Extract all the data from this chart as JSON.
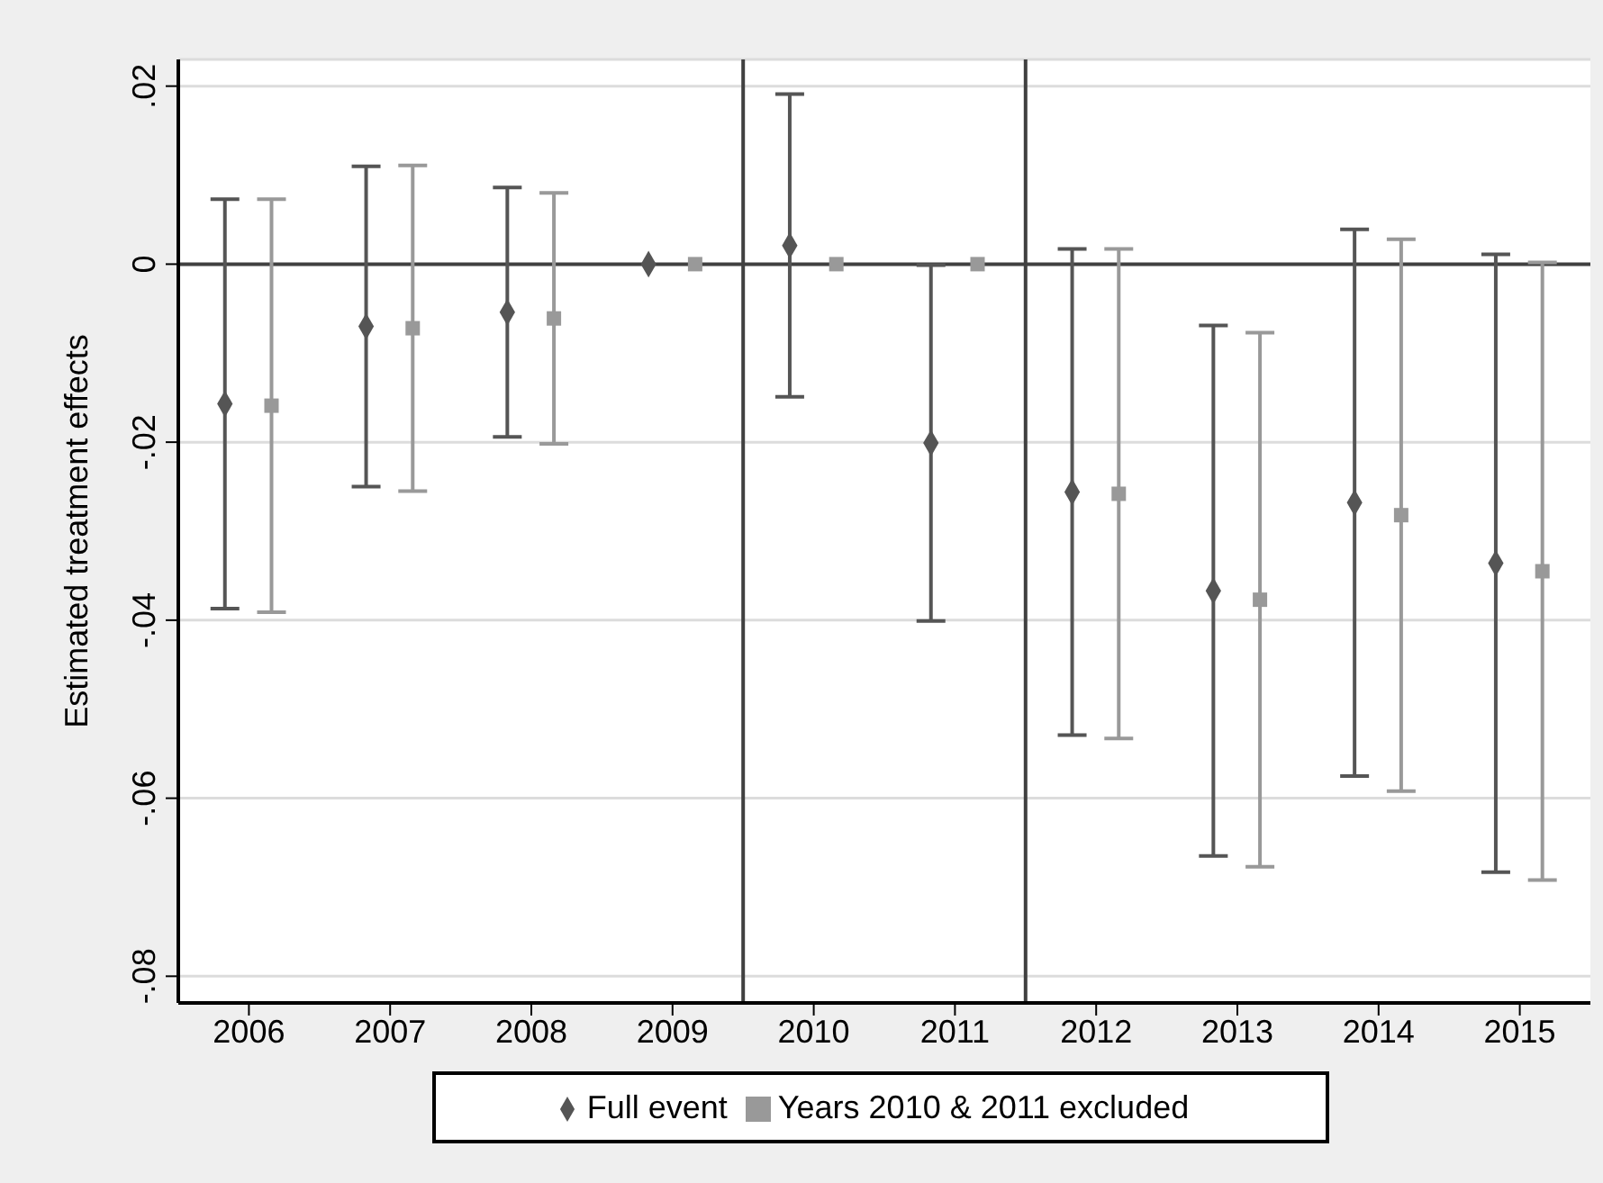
{
  "chart_data": {
    "type": "scatter",
    "ylabel": "Estimated treatment effects",
    "xlim": [
      2005.5,
      2015.5
    ],
    "xticks": [
      2006,
      2007,
      2008,
      2009,
      2010,
      2011,
      2012,
      2013,
      2014,
      2015
    ],
    "ylim": [
      -0.083,
      0.023
    ],
    "yticks": [
      {
        "value": -0.08,
        "label": "-.08"
      },
      {
        "value": -0.06,
        "label": "-.06"
      },
      {
        "value": -0.04,
        "label": "-.04"
      },
      {
        "value": -0.02,
        "label": "-.02"
      },
      {
        "value": 0,
        "label": "0"
      },
      {
        "value": 0.02,
        "label": ".02"
      }
    ],
    "grid": "y",
    "legend": "bottom",
    "ref_lines": [
      {
        "axis": "y",
        "value": 0,
        "color": "#404040"
      },
      {
        "axis": "x",
        "value": 2009.5,
        "color": "#404040"
      },
      {
        "axis": "x",
        "value": 2011.5,
        "color": "#404040"
      }
    ],
    "series": [
      {
        "name": "Full event",
        "color": "#555555",
        "marker": "diamond",
        "x": [
          2005.83,
          2006.83,
          2007.83,
          2008.83,
          2009.83,
          2010.83,
          2011.83,
          2012.83,
          2013.83,
          2014.83
        ],
        "values": [
          -0.0157,
          -0.007,
          -0.0054,
          0,
          0.0021,
          -0.0201,
          -0.0256,
          -0.0367,
          -0.0268,
          -0.0336
        ],
        "errors": [
          0.023,
          0.018,
          0.014,
          null,
          0.017,
          0.02,
          0.0273,
          0.0298,
          0.0307,
          0.0347
        ]
      },
      {
        "name": "Years 2010 & 2011 excluded",
        "color": "#999999",
        "marker": "square",
        "x": [
          2006.16,
          2007.16,
          2008.16,
          2009.16,
          2010.16,
          2011.16,
          2012.16,
          2013.16,
          2014.16,
          2015.16
        ],
        "values": [
          -0.0159,
          -0.0072,
          -0.0061,
          0,
          0,
          0,
          -0.0258,
          -0.0377,
          -0.0282,
          -0.0345
        ],
        "errors": [
          0.0232,
          0.0183,
          0.0141,
          null,
          null,
          null,
          0.0275,
          0.03,
          0.031,
          0.0347
        ]
      }
    ]
  }
}
